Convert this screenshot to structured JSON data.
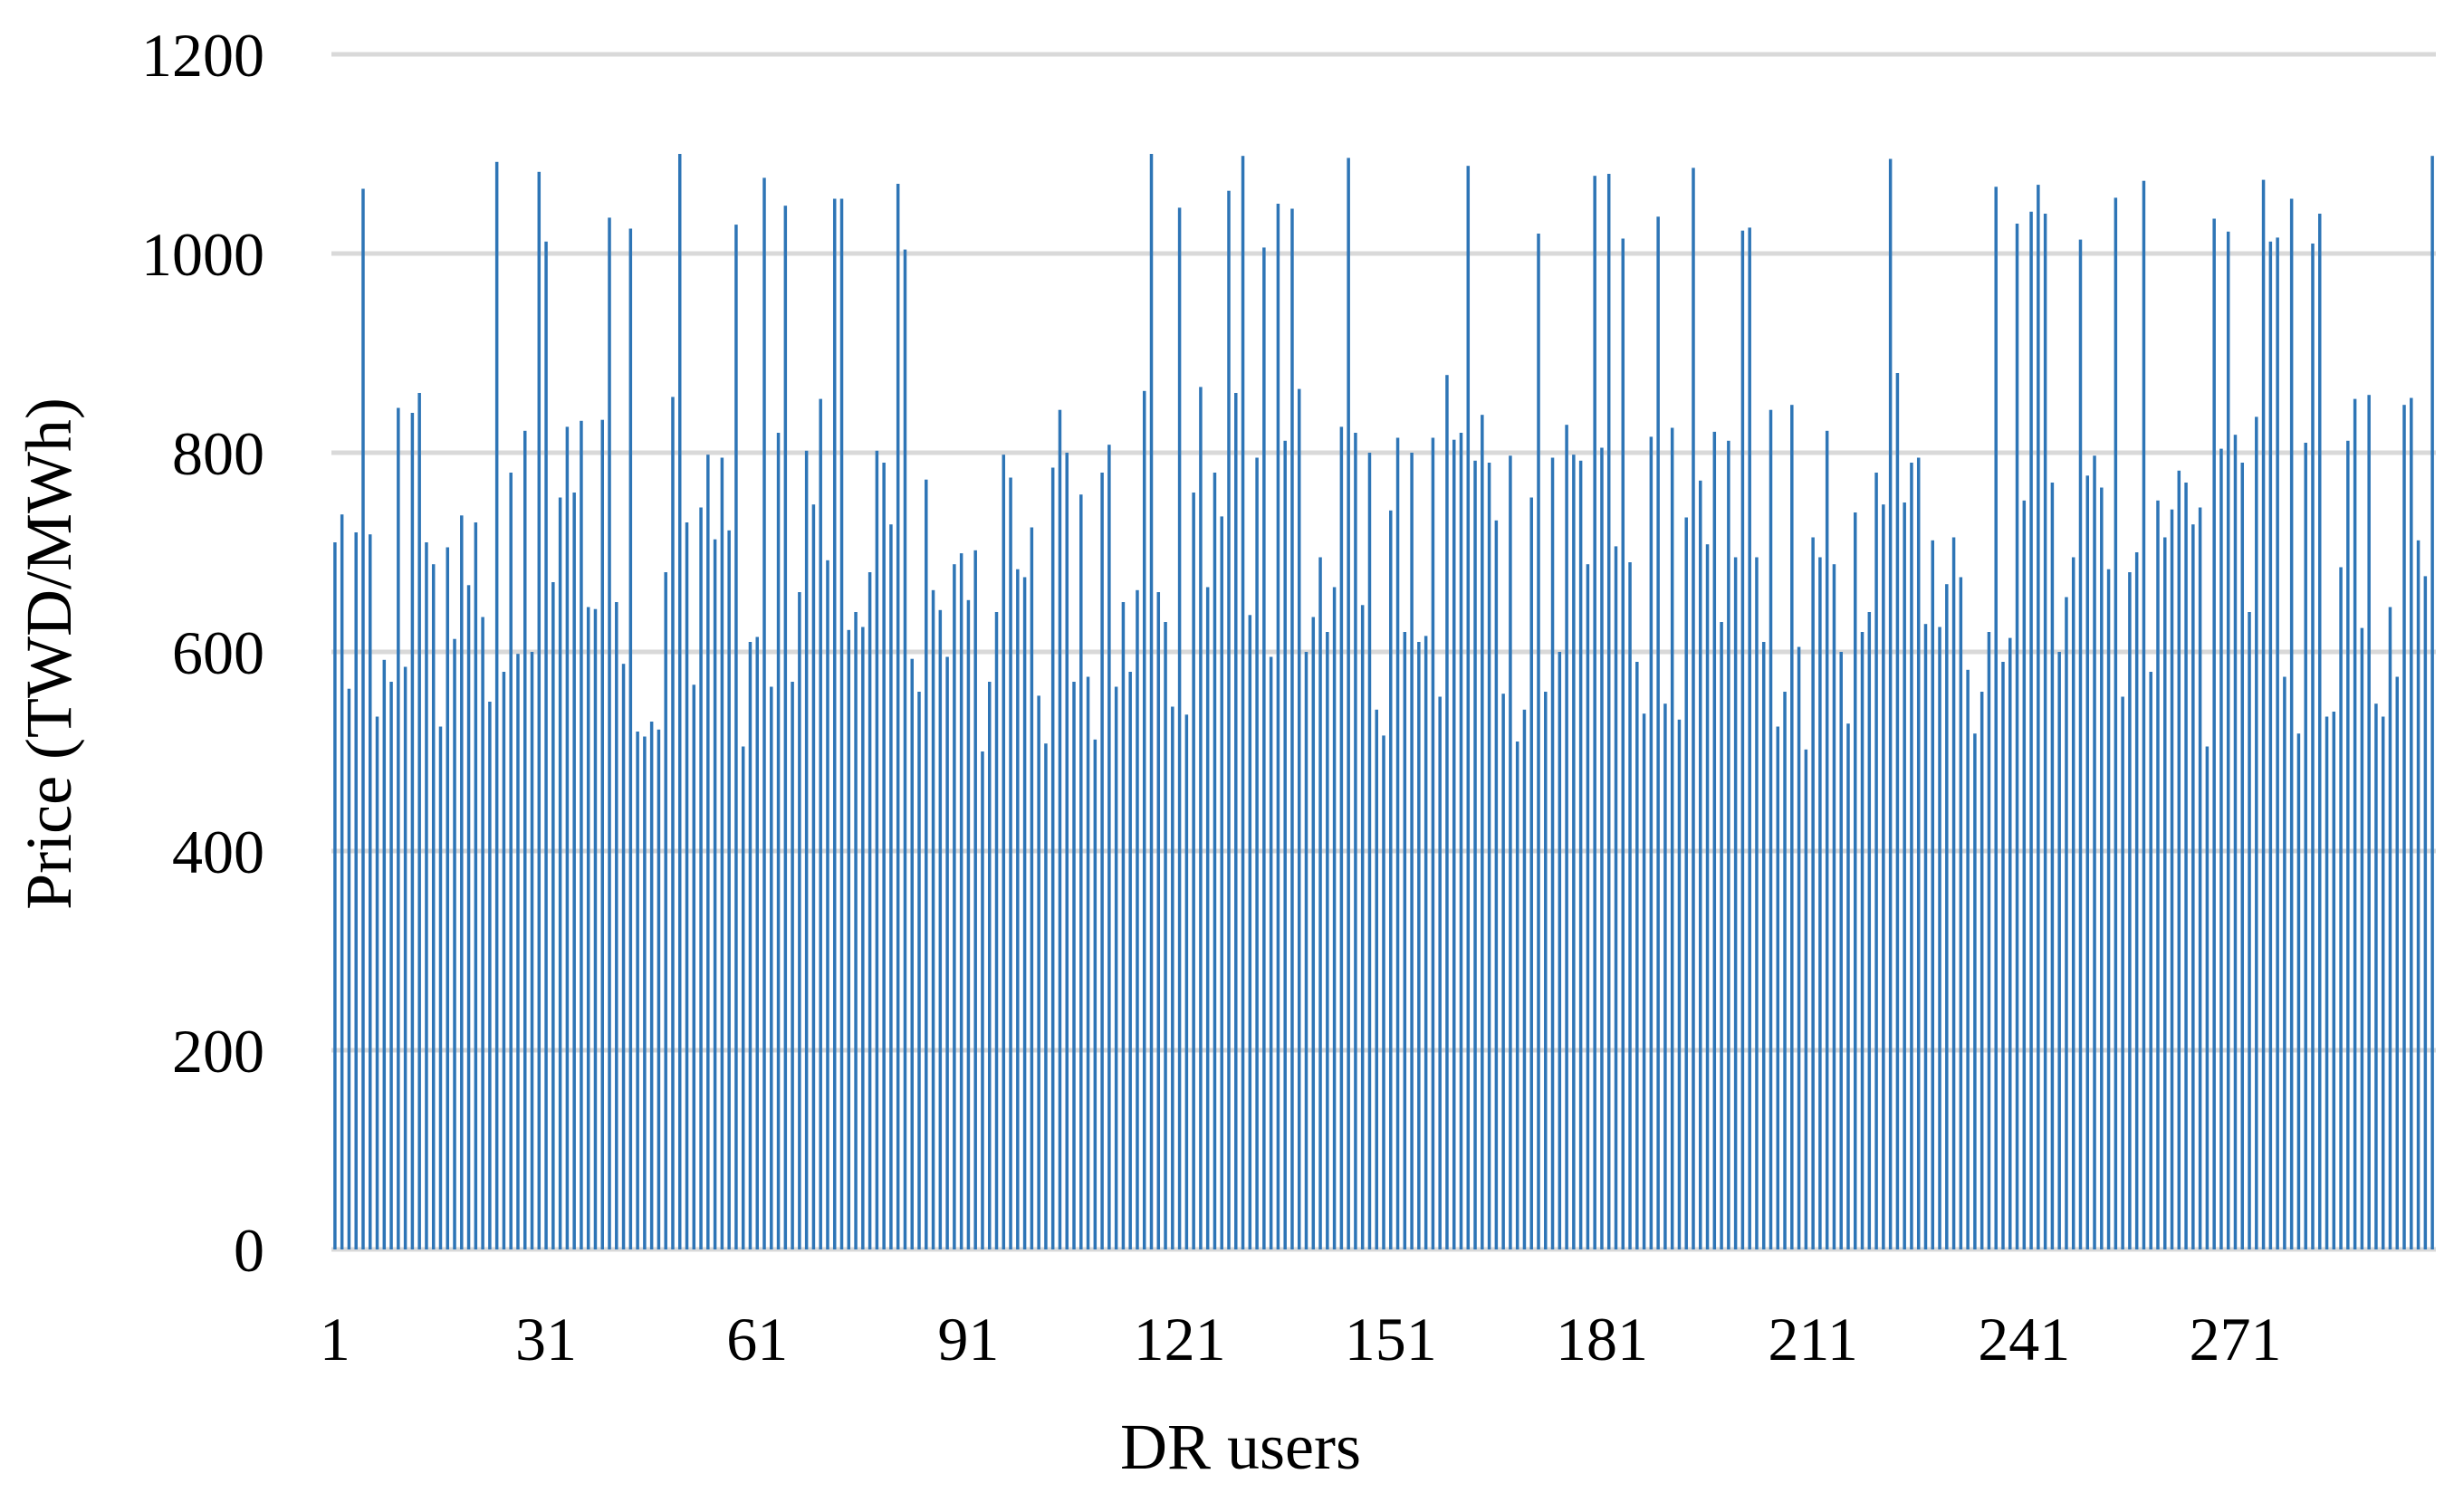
{
  "chart_data": {
    "type": "bar",
    "title": "",
    "xlabel": "DR users",
    "ylabel": "Price (TWD/MWh)",
    "ylim": [
      0,
      1200
    ],
    "yticks": [
      0,
      200,
      400,
      600,
      800,
      1000,
      1200
    ],
    "xtick_labels": [
      "1",
      "31",
      "61",
      "91",
      "121",
      "151",
      "181",
      "211",
      "241",
      "271"
    ],
    "grid": "horizontal",
    "legend": "none",
    "bar_color": "#2e75b6",
    "grid_color": "#d9d9d9",
    "series": [
      {
        "values": [
          710,
          738,
          563,
          720,
          1065,
          718,
          535,
          592,
          570,
          845,
          585,
          840,
          860,
          710,
          688,
          525,
          705,
          613,
          737,
          667,
          730,
          635,
          550,
          1092,
          580,
          780,
          598,
          822,
          600,
          1082,
          1012,
          670,
          755,
          826,
          760,
          832,
          645,
          643,
          833,
          1036,
          650,
          588,
          1025,
          520,
          515,
          530,
          522,
          680,
          856,
          1100,
          730,
          567,
          745,
          798,
          713,
          795,
          722,
          1029,
          505,
          610,
          615,
          1076,
          565,
          820,
          1048,
          570,
          660,
          802,
          748,
          854,
          692,
          1055,
          1055,
          622,
          640,
          625,
          680,
          802,
          790,
          728,
          1070,
          1004,
          593,
          560,
          773,
          662,
          642,
          595,
          688,
          699,
          652,
          702,
          500,
          570,
          640,
          798,
          775,
          683,
          675,
          725,
          556,
          508,
          785,
          843,
          800,
          570,
          758,
          575,
          512,
          780,
          808,
          565,
          650,
          580,
          662,
          862,
          1100,
          660,
          630,
          545,
          1046,
          537,
          760,
          866,
          665,
          780,
          736,
          1063,
          860,
          1098,
          637,
          795,
          1006,
          595,
          1050,
          812,
          1045,
          864,
          600,
          635,
          695,
          620,
          665,
          826,
          1096,
          820,
          647,
          800,
          542,
          516,
          742,
          815,
          620,
          800,
          610,
          616,
          815,
          555,
          878,
          813,
          820,
          1088,
          792,
          838,
          790,
          732,
          558,
          797,
          510,
          542,
          755,
          1020,
          560,
          795,
          600,
          828,
          798,
          792,
          688,
          1078,
          805,
          1080,
          706,
          1015,
          690,
          590,
          538,
          816,
          1037,
          548,
          825,
          532,
          735,
          1086,
          772,
          708,
          821,
          630,
          812,
          695,
          1023,
          1026,
          695,
          610,
          843,
          525,
          560,
          848,
          605,
          502,
          715,
          695,
          822,
          688,
          600,
          528,
          740,
          620,
          640,
          780,
          748,
          1095,
          880,
          750,
          790,
          795,
          628,
          712,
          625,
          668,
          715,
          675,
          582,
          518,
          560,
          620,
          1067,
          590,
          614,
          1030,
          752,
          1042,
          1069,
          1040,
          770,
          600,
          655,
          695,
          1014,
          777,
          797,
          765,
          683,
          1056,
          555,
          680,
          700,
          1073,
          580,
          752,
          715,
          743,
          782,
          770,
          728,
          745,
          505,
          1035,
          804,
          1022,
          818,
          790,
          640,
          836,
          1074,
          1012,
          1016,
          575,
          1055,
          518,
          810,
          1010,
          1040,
          535,
          540,
          685,
          812,
          854,
          624,
          858,
          548,
          535,
          645,
          575,
          848,
          855,
          712,
          676,
          1098
        ]
      }
    ]
  }
}
